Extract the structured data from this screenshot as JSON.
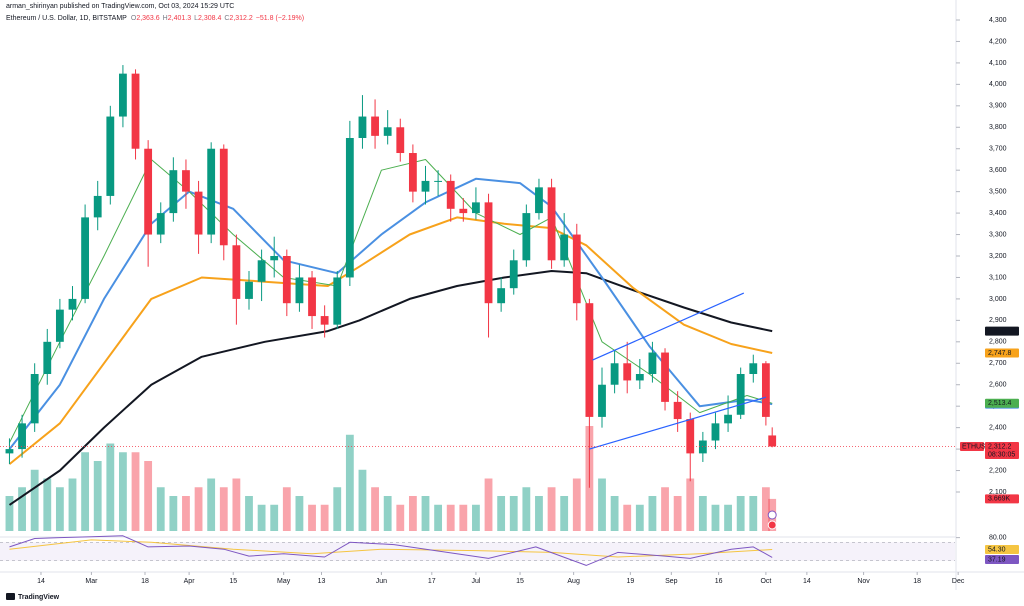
{
  "header": {
    "author_line": "arman_shirinyan published on TradingView.com, Oct 03, 2024 15:29 UTC",
    "symbol_line": "Ethereum / U.S. Dollar, 1D, BITSTAMP",
    "ohlc": [
      {
        "key": "O",
        "value": "2,363.6"
      },
      {
        "key": "H",
        "value": "2,401.3"
      },
      {
        "key": "L",
        "value": "2,308.4"
      },
      {
        "key": "C",
        "value": "2,312.2"
      }
    ],
    "change": "−51.8 (−2.19%)"
  },
  "footer": {
    "brand": "TradingView"
  },
  "chart_data": {
    "type": "candlestick",
    "up_color": "#089981",
    "down_color": "#f23645",
    "xlim": [
      "2024-02-01",
      "2024-11-30"
    ],
    "xticks": [
      {
        "value": "2024-02-14",
        "label": "14"
      },
      {
        "value": "2024-03-01",
        "label": "Mar"
      },
      {
        "value": "2024-03-18",
        "label": "18"
      },
      {
        "value": "2024-04-01",
        "label": "Apr"
      },
      {
        "value": "2024-04-15",
        "label": "15"
      },
      {
        "value": "2024-05-01",
        "label": "May"
      },
      {
        "value": "2024-05-13",
        "label": "13"
      },
      {
        "value": "2024-06-01",
        "label": "Jun"
      },
      {
        "value": "2024-06-17",
        "label": "17"
      },
      {
        "value": "2024-07-01",
        "label": "Jul"
      },
      {
        "value": "2024-07-15",
        "label": "15"
      },
      {
        "value": "2024-08-01",
        "label": "Aug"
      },
      {
        "value": "2024-08-19",
        "label": "19"
      },
      {
        "value": "2024-09-01",
        "label": "Sep"
      },
      {
        "value": "2024-09-16",
        "label": "16"
      },
      {
        "value": "2024-10-01",
        "label": "Oct"
      },
      {
        "value": "2024-10-14",
        "label": "14"
      },
      {
        "value": "2024-11-01",
        "label": "Nov"
      },
      {
        "value": "2024-11-18",
        "label": "18"
      },
      {
        "value": "2024-12-01",
        "label": "Dec"
      }
    ],
    "ylim": [
      2100,
      4300
    ],
    "yticks": [
      {
        "value": 2100,
        "label": "2,100"
      },
      {
        "value": 2200,
        "label": "2,200"
      },
      {
        "value": 2300,
        "label": "2,300"
      },
      {
        "value": 2400,
        "label": "2,400"
      },
      {
        "value": 2500,
        "label": "2,500"
      },
      {
        "value": 2600,
        "label": "2,600"
      },
      {
        "value": 2700,
        "label": "2,700"
      },
      {
        "value": 2800,
        "label": "2,800"
      },
      {
        "value": 2900,
        "label": "2,900"
      },
      {
        "value": 3000,
        "label": "3,000"
      },
      {
        "value": 3100,
        "label": "3,100"
      },
      {
        "value": 3200,
        "label": "3,200"
      },
      {
        "value": 3300,
        "label": "3,300"
      },
      {
        "value": 3400,
        "label": "3,400"
      },
      {
        "value": 3500,
        "label": "3,500"
      },
      {
        "value": 3600,
        "label": "3,600"
      },
      {
        "value": 3700,
        "label": "3,700"
      },
      {
        "value": 3800,
        "label": "3,800"
      },
      {
        "value": 3900,
        "label": "3,900"
      },
      {
        "value": 4000,
        "label": "4,000"
      },
      {
        "value": 4100,
        "label": "4,100"
      },
      {
        "value": 4200,
        "label": "4,200"
      },
      {
        "value": 4300,
        "label": "4,300"
      }
    ],
    "grid": false,
    "x": [
      "2024-02-04",
      "2024-02-08",
      "2024-02-12",
      "2024-02-16",
      "2024-02-20",
      "2024-02-24",
      "2024-02-28",
      "2024-03-03",
      "2024-03-07",
      "2024-03-11",
      "2024-03-15",
      "2024-03-19",
      "2024-03-23",
      "2024-03-27",
      "2024-03-31",
      "2024-04-04",
      "2024-04-08",
      "2024-04-12",
      "2024-04-16",
      "2024-04-20",
      "2024-04-24",
      "2024-04-28",
      "2024-05-02",
      "2024-05-06",
      "2024-05-10",
      "2024-05-14",
      "2024-05-18",
      "2024-05-22",
      "2024-05-26",
      "2024-05-30",
      "2024-06-03",
      "2024-06-07",
      "2024-06-11",
      "2024-06-15",
      "2024-06-19",
      "2024-06-23",
      "2024-06-27",
      "2024-07-01",
      "2024-07-05",
      "2024-07-09",
      "2024-07-13",
      "2024-07-17",
      "2024-07-21",
      "2024-07-25",
      "2024-07-29",
      "2024-08-02",
      "2024-08-06",
      "2024-08-10",
      "2024-08-14",
      "2024-08-18",
      "2024-08-22",
      "2024-08-26",
      "2024-08-30",
      "2024-09-03",
      "2024-09-07",
      "2024-09-11",
      "2024-09-15",
      "2024-09-19",
      "2024-09-23",
      "2024-09-27",
      "2024-10-01",
      "2024-10-03"
    ],
    "open": [
      2280,
      2300,
      2420,
      2650,
      2800,
      2950,
      3000,
      3380,
      3480,
      3850,
      4050,
      3700,
      3300,
      3400,
      3600,
      3500,
      3300,
      3700,
      3250,
      3000,
      3080,
      3180,
      3200,
      2980,
      3100,
      2920,
      2880,
      3100,
      3750,
      3850,
      3760,
      3800,
      3680,
      3500,
      3550,
      3550,
      3420,
      3400,
      3450,
      2980,
      3050,
      3180,
      3400,
      3520,
      3180,
      3300,
      2980,
      2450,
      2600,
      2700,
      2620,
      2650,
      2750,
      2520,
      2440,
      2280,
      2340,
      2420,
      2460,
      2650,
      2700,
      2363.6
    ],
    "high": [
      2350,
      2460,
      2700,
      2860,
      3000,
      3060,
      3440,
      3550,
      3900,
      4090,
      4070,
      3740,
      3450,
      3660,
      3650,
      3550,
      3730,
      3720,
      3300,
      3130,
      3230,
      3290,
      3230,
      3160,
      3130,
      2970,
      3130,
      3830,
      3950,
      3930,
      3880,
      3840,
      3720,
      3620,
      3600,
      3580,
      3470,
      3520,
      3490,
      3100,
      3230,
      3440,
      3560,
      3560,
      3400,
      3350,
      3000,
      2680,
      2760,
      2800,
      2720,
      2800,
      2770,
      2570,
      2470,
      2380,
      2470,
      2550,
      2680,
      2740,
      2710,
      2401.3
    ],
    "low": [
      2230,
      2260,
      2380,
      2600,
      2770,
      2900,
      2980,
      3320,
      3440,
      3800,
      3650,
      3150,
      3260,
      3360,
      3420,
      3210,
      3260,
      3180,
      2880,
      2950,
      2990,
      3100,
      2920,
      2940,
      2860,
      2820,
      2860,
      3060,
      3700,
      3700,
      3720,
      3640,
      3450,
      3440,
      3480,
      3360,
      3360,
      3370,
      2820,
      2940,
      3020,
      3150,
      3370,
      3140,
      3150,
      2900,
      2120,
      2400,
      2560,
      2560,
      2580,
      2610,
      2480,
      2380,
      2150,
      2240,
      2300,
      2380,
      2440,
      2610,
      2410,
      2308.4
    ],
    "close": [
      2300,
      2420,
      2650,
      2800,
      2950,
      3000,
      3380,
      3480,
      3850,
      4050,
      3700,
      3300,
      3400,
      3600,
      3500,
      3300,
      3700,
      3250,
      3000,
      3080,
      3180,
      3200,
      2980,
      3100,
      2920,
      2880,
      3100,
      3750,
      3850,
      3760,
      3800,
      3680,
      3500,
      3550,
      3550,
      3420,
      3400,
      3450,
      2980,
      3050,
      3180,
      3400,
      3520,
      3180,
      3300,
      2980,
      2450,
      2600,
      2700,
      2620,
      2650,
      2750,
      2520,
      2440,
      2280,
      2340,
      2420,
      2460,
      2650,
      2700,
      2450,
      2312.2
    ],
    "last_label": "2,312.2",
    "symbol": "ETHUSD",
    "countdown": "08:30:05",
    "volume": [
      4,
      5,
      7,
      6,
      5,
      6,
      9,
      8,
      10,
      9,
      9,
      8,
      5,
      4,
      4,
      5,
      6,
      5,
      6,
      4,
      3,
      3,
      5,
      4,
      3,
      3,
      5,
      11,
      7,
      5,
      4,
      3,
      4,
      4,
      3,
      3,
      3,
      3,
      6,
      4,
      4,
      5,
      4,
      5,
      4,
      6,
      12,
      6,
      4,
      3,
      3,
      4,
      5,
      4,
      6,
      4,
      3,
      3,
      4,
      4,
      5,
      3.669
    ],
    "volume_ylim": [
      0,
      12
    ],
    "volume_label": "3.669K",
    "series": [
      {
        "color": "#131722",
        "width": 2,
        "x": [
          "2024-02-04",
          "2024-02-20",
          "2024-03-05",
          "2024-03-20",
          "2024-04-05",
          "2024-04-25",
          "2024-05-15",
          "2024-05-25",
          "2024-06-10",
          "2024-06-25",
          "2024-07-10",
          "2024-07-25",
          "2024-08-05",
          "2024-08-20",
          "2024-09-05",
          "2024-09-20",
          "2024-10-03"
        ],
        "values": [
          2040,
          2200,
          2400,
          2600,
          2730,
          2800,
          2850,
          2900,
          3000,
          3060,
          3100,
          3130,
          3120,
          3040,
          2960,
          2890,
          2850.1
        ],
        "value_label": "2,850.1",
        "label_text_color": "#ffffff"
      },
      {
        "color": "#f7a21b",
        "width": 2,
        "x": [
          "2024-02-04",
          "2024-02-20",
          "2024-03-05",
          "2024-03-20",
          "2024-04-05",
          "2024-04-25",
          "2024-05-15",
          "2024-05-25",
          "2024-06-10",
          "2024-06-25",
          "2024-07-10",
          "2024-07-25",
          "2024-08-05",
          "2024-08-20",
          "2024-09-05",
          "2024-09-20",
          "2024-10-03"
        ],
        "values": [
          2230,
          2420,
          2700,
          3000,
          3100,
          3080,
          3060,
          3150,
          3300,
          3380,
          3350,
          3330,
          3250,
          3050,
          2880,
          2790,
          2747.8
        ],
        "value_label": "2,747.8",
        "label_text_color": "#131722"
      },
      {
        "color": "#4a90e2",
        "width": 2,
        "x": [
          "2024-02-04",
          "2024-02-20",
          "2024-03-05",
          "2024-03-20",
          "2024-04-01",
          "2024-04-15",
          "2024-05-01",
          "2024-05-18",
          "2024-06-01",
          "2024-06-15",
          "2024-07-01",
          "2024-07-15",
          "2024-07-25",
          "2024-08-10",
          "2024-08-25",
          "2024-09-10",
          "2024-09-25",
          "2024-10-03"
        ],
        "values": [
          2300,
          2600,
          3000,
          3350,
          3500,
          3420,
          3180,
          3120,
          3300,
          3450,
          3560,
          3540,
          3430,
          3100,
          2780,
          2500,
          2530,
          2509.8
        ],
        "value_label": "2,509.8",
        "label_text_color": "#131722"
      },
      {
        "color": "#4caf50",
        "width": 1,
        "x": [
          "2024-02-04",
          "2024-02-20",
          "2024-03-05",
          "2024-03-20",
          "2024-04-01",
          "2024-04-15",
          "2024-05-01",
          "2024-05-18",
          "2024-06-01",
          "2024-06-15",
          "2024-07-01",
          "2024-07-15",
          "2024-07-25",
          "2024-08-10",
          "2024-08-25",
          "2024-09-10",
          "2024-09-25",
          "2024-10-03"
        ],
        "values": [
          2330,
          2800,
          3200,
          3650,
          3500,
          3300,
          3100,
          3060,
          3600,
          3650,
          3400,
          3300,
          3380,
          2800,
          2650,
          2470,
          2550,
          2513.4
        ],
        "value_label": "2,513.4",
        "label_text_color": "#131722"
      }
    ],
    "drawings": [
      {
        "color": "#2962ff",
        "x": [
          "2024-08-07",
          "2024-09-24"
        ],
        "values": [
          2715,
          3027
        ]
      },
      {
        "color": "#2962ff",
        "x": [
          "2024-08-06",
          "2024-10-01"
        ],
        "values": [
          2300,
          2542
        ]
      }
    ],
    "rsi": {
      "ylim": [
        10,
        90
      ],
      "yticks": [
        {
          "value": 80,
          "label": "80.00"
        }
      ],
      "levels": [
        70,
        30
      ],
      "color": "#7e57c2",
      "x": [
        "2024-02-04",
        "2024-02-12",
        "2024-02-20",
        "2024-03-01",
        "2024-03-11",
        "2024-03-19",
        "2024-04-01",
        "2024-04-12",
        "2024-04-20",
        "2024-05-01",
        "2024-05-14",
        "2024-05-22",
        "2024-06-05",
        "2024-06-20",
        "2024-07-05",
        "2024-07-20",
        "2024-08-05",
        "2024-08-15",
        "2024-08-30",
        "2024-09-07",
        "2024-09-20",
        "2024-09-27",
        "2024-10-03"
      ],
      "values": [
        60,
        78,
        80,
        82,
        84,
        60,
        62,
        55,
        40,
        45,
        38,
        70,
        65,
        50,
        35,
        60,
        20,
        48,
        40,
        35,
        55,
        60,
        37.19
      ],
      "value_label": "37.19",
      "ma_color": "#f5c542",
      "ma_x": [
        "2024-02-04",
        "2024-03-01",
        "2024-03-20",
        "2024-04-15",
        "2024-05-10",
        "2024-06-01",
        "2024-07-01",
        "2024-07-25",
        "2024-08-15",
        "2024-09-10",
        "2024-10-03"
      ],
      "ma_values": [
        55,
        75,
        70,
        55,
        45,
        55,
        52,
        48,
        38,
        45,
        54.3
      ],
      "ma_value_label": "54.30"
    }
  }
}
